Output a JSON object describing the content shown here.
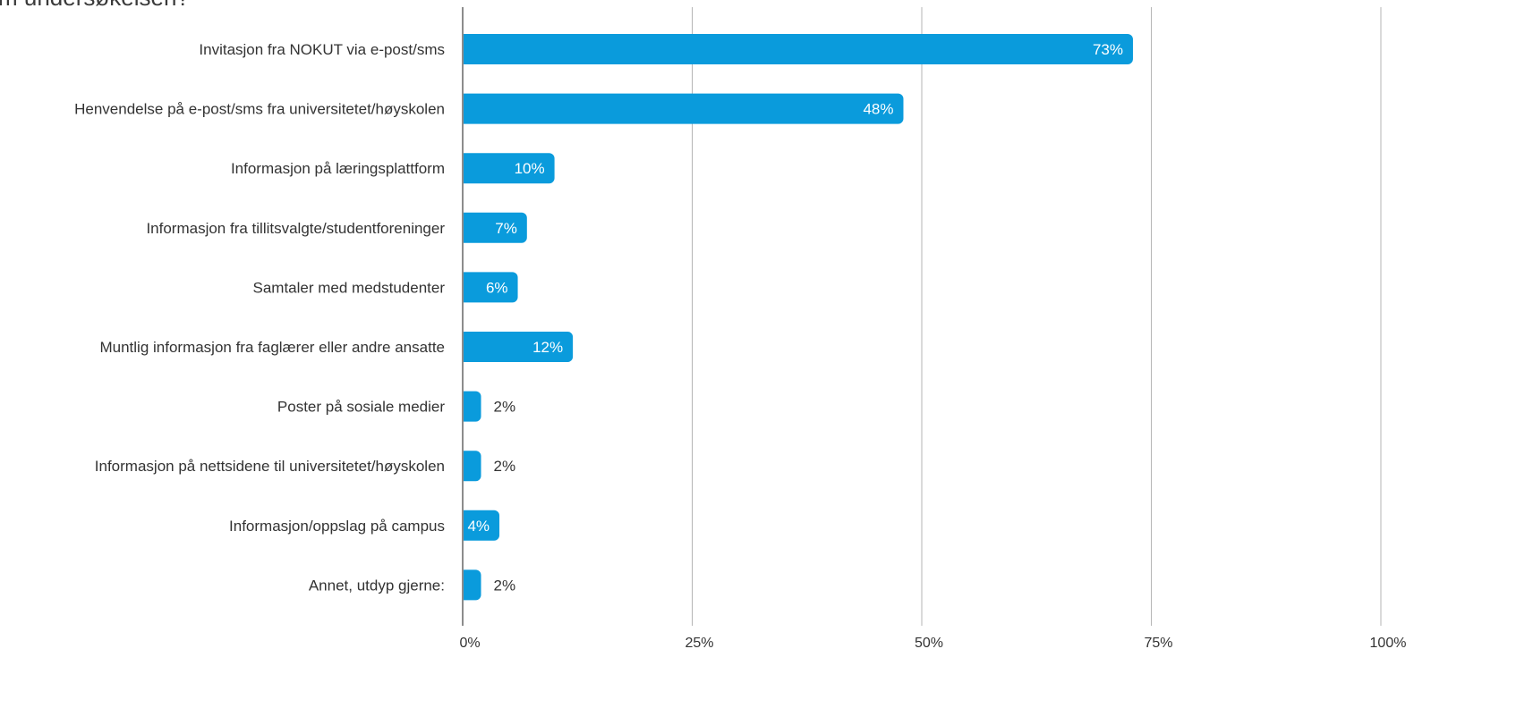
{
  "chart_data": {
    "type": "bar",
    "orientation": "horizontal",
    "title": "m undersøkelsen?",
    "categories": [
      "Invitasjon fra NOKUT via e-post/sms",
      "Henvendelse på e-post/sms fra universitetet/høyskolen",
      "Informasjon på læringsplattform",
      "Informasjon fra tillitsvalgte/studentforeninger",
      "Samtaler med medstudenter",
      "Muntlig informasjon fra faglærer eller andre ansatte",
      "Poster på sosiale medier",
      "Informasjon på nettsidene til universitetet/høyskolen",
      "Informasjon/oppslag på campus",
      "Annet, utdyp gjerne:"
    ],
    "values": [
      73,
      48,
      10,
      7,
      6,
      12,
      2,
      2,
      4,
      2
    ],
    "value_labels": [
      "73%",
      "48%",
      "10%",
      "7%",
      "6%",
      "12%",
      "2%",
      "2%",
      "4%",
      "2%"
    ],
    "x_ticks": [
      0,
      25,
      50,
      75,
      100
    ],
    "x_tick_labels": [
      "0%",
      "25%",
      "50%",
      "75%",
      "100%"
    ],
    "xlim": [
      0,
      100
    ],
    "grid": true,
    "legend": "none",
    "colors": {
      "bar": "#0a9bdc",
      "gridline": "#b5b5b5",
      "axis": "#8c8c8c",
      "label_inside": "#ffffff",
      "label_outside": "#333333"
    }
  }
}
